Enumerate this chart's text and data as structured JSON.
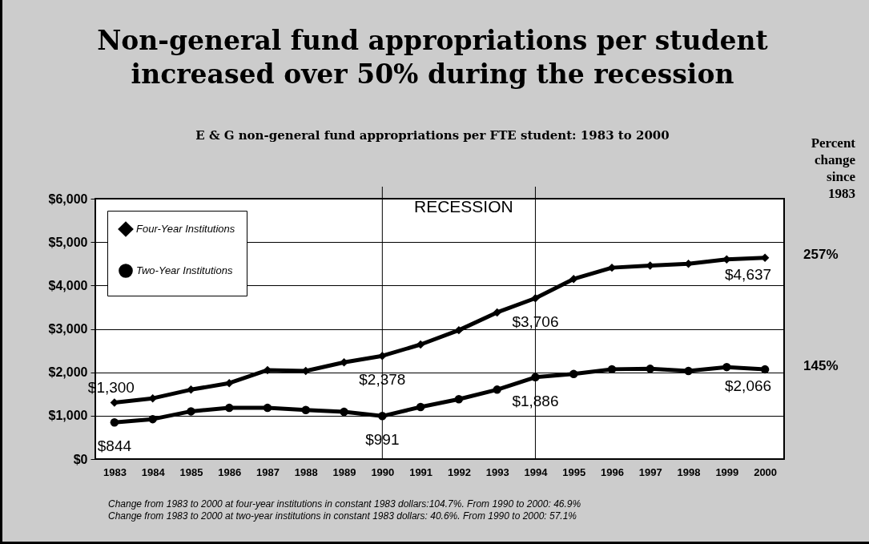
{
  "chart_data": {
    "type": "line",
    "title": "Non-general fund appropriations per student increased over 50% during the recession",
    "subtitle": "E & G non-general fund appropriations per FTE student: 1983 to 2000",
    "categories": [
      "1983",
      "1984",
      "1985",
      "1986",
      "1987",
      "1988",
      "1989",
      "1990",
      "1991",
      "1992",
      "1993",
      "1994",
      "1995",
      "1996",
      "1997",
      "1998",
      "1999",
      "2000"
    ],
    "series": [
      {
        "name": "Four-Year Institutions",
        "color": "#000000",
        "marker": "diamond",
        "values": [
          1300,
          1400,
          1600,
          1750,
          2050,
          2030,
          2230,
          2378,
          2640,
          2970,
          3380,
          3706,
          4150,
          4410,
          4460,
          4500,
          4600,
          4637
        ],
        "value_labels": [
          "$1,300",
          null,
          null,
          null,
          null,
          null,
          null,
          "$2,378",
          null,
          null,
          null,
          "$3,706",
          null,
          null,
          null,
          null,
          null,
          "$4,637"
        ]
      },
      {
        "name": "Two-Year Institutions",
        "color": "#000000",
        "marker": "circle",
        "values": [
          844,
          920,
          1100,
          1180,
          1180,
          1130,
          1090,
          991,
          1200,
          1380,
          1600,
          1886,
          1960,
          2070,
          2080,
          2030,
          2120,
          2066
        ],
        "value_labels": [
          "$844",
          null,
          null,
          null,
          null,
          null,
          null,
          "$991",
          null,
          null,
          null,
          "$1,886",
          null,
          null,
          null,
          null,
          null,
          "$2,066"
        ]
      }
    ],
    "ylim": [
      0,
      6000
    ],
    "yticks": [
      {
        "value": 0,
        "label": "$0"
      },
      {
        "value": 1000,
        "label": "$1,000"
      },
      {
        "value": 2000,
        "label": "$2,000"
      },
      {
        "value": 3000,
        "label": "$3,000"
      },
      {
        "value": 4000,
        "label": "$4,000"
      },
      {
        "value": 5000,
        "label": "$5,000"
      },
      {
        "value": 6000,
        "label": "$6,000"
      }
    ],
    "grid": "y",
    "legend": "top left",
    "line_style": "solid",
    "ref_lines": [
      {
        "axis": "x",
        "value": "1990"
      },
      {
        "axis": "x",
        "value": "1994"
      }
    ],
    "annotations": [
      "RECESSION",
      "Percent change since 1983",
      {
        "text": "257%",
        "x": "2000",
        "y": 4637
      },
      {
        "text": "145%",
        "x": "2000",
        "y": 2066
      },
      "Change from 1983 to 2000 at four-year institutions in constant 1983 dollars:104.7%. From 1990 to 2000: 46.9%",
      "Change from 1983 to 2000 at two-year institutions in constant 1983 dollars: 40.6%. From 1990 to 2000: 57.1%"
    ]
  }
}
